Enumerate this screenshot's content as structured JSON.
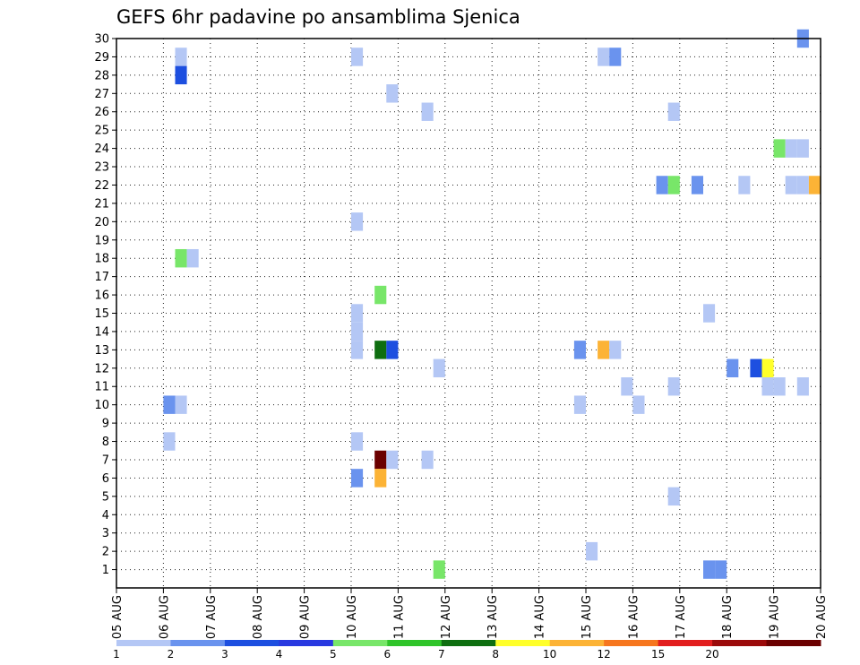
{
  "chart_data": {
    "type": "heatmap",
    "title": "GEFS 6hr padavine po ansamblima Sjenica",
    "xlabel": "",
    "ylabel": "",
    "x_tick_labels": [
      "05 AUG",
      "06 AUG",
      "07 AUG",
      "08 AUG",
      "09 AUG",
      "10 AUG",
      "11 AUG",
      "12 AUG",
      "13 AUG",
      "14 AUG",
      "15 AUG",
      "16 AUG",
      "17 AUG",
      "18 AUG",
      "19 AUG",
      "20 AUG"
    ],
    "y_ticks": [
      1,
      2,
      3,
      4,
      5,
      6,
      7,
      8,
      9,
      10,
      11,
      12,
      13,
      14,
      15,
      16,
      17,
      18,
      19,
      20,
      21,
      22,
      23,
      24,
      25,
      26,
      27,
      28,
      29,
      30
    ],
    "x_range_days": [
      0,
      15
    ],
    "y_range": [
      0,
      30
    ],
    "grid": true,
    "colorbar": {
      "labels": [
        "1",
        "2",
        "3",
        "4",
        "5",
        "6",
        "7",
        "8",
        "10",
        "12",
        "15",
        "20"
      ],
      "colors": [
        "#b4c7f5",
        "#6a93ee",
        "#1d4fe0",
        "#2839e0",
        "#78e669",
        "#2fc42a",
        "#0e6e10",
        "#ffff2a",
        "#fcb336",
        "#f6761e",
        "#e21e1e",
        "#9b0a0a",
        "#6b0000"
      ]
    },
    "cells": [
      {
        "day": 1.25,
        "member": 29,
        "color": "#b4c7f5"
      },
      {
        "day": 1.25,
        "member": 28,
        "color": "#1d4fe0"
      },
      {
        "day": 1.25,
        "member": 18,
        "color": "#78e669"
      },
      {
        "day": 1.5,
        "member": 18,
        "color": "#b4c7f5"
      },
      {
        "day": 1.0,
        "member": 10,
        "color": "#6a93ee"
      },
      {
        "day": 1.25,
        "member": 10,
        "color": "#b4c7f5"
      },
      {
        "day": 1.0,
        "member": 8,
        "color": "#b4c7f5"
      },
      {
        "day": 5.0,
        "member": 29,
        "color": "#b4c7f5"
      },
      {
        "day": 5.0,
        "member": 20,
        "color": "#b4c7f5"
      },
      {
        "day": 5.0,
        "member": 15,
        "color": "#b4c7f5"
      },
      {
        "day": 5.0,
        "member": 14,
        "color": "#b4c7f5"
      },
      {
        "day": 5.0,
        "member": 13,
        "color": "#b4c7f5"
      },
      {
        "day": 5.0,
        "member": 8,
        "color": "#b4c7f5"
      },
      {
        "day": 5.0,
        "member": 6,
        "color": "#6a93ee"
      },
      {
        "day": 5.75,
        "member": 27,
        "color": "#b4c7f5"
      },
      {
        "day": 5.5,
        "member": 16,
        "color": "#78e669"
      },
      {
        "day": 5.5,
        "member": 13,
        "color": "#0e6e10"
      },
      {
        "day": 5.75,
        "member": 13,
        "color": "#1d4fe0"
      },
      {
        "day": 5.5,
        "member": 7,
        "color": "#6b0000"
      },
      {
        "day": 5.75,
        "member": 7,
        "color": "#b4c7f5"
      },
      {
        "day": 5.5,
        "member": 6,
        "color": "#fcb336"
      },
      {
        "day": 6.5,
        "member": 26,
        "color": "#b4c7f5"
      },
      {
        "day": 6.5,
        "member": 7,
        "color": "#b4c7f5"
      },
      {
        "day": 6.75,
        "member": 12,
        "color": "#b4c7f5"
      },
      {
        "day": 6.75,
        "member": 1,
        "color": "#78e669"
      },
      {
        "day": 10.25,
        "member": 29,
        "color": "#b4c7f5"
      },
      {
        "day": 10.5,
        "member": 29,
        "color": "#6a93ee"
      },
      {
        "day": 9.75,
        "member": 13,
        "color": "#6a93ee"
      },
      {
        "day": 10.25,
        "member": 13,
        "color": "#fcb336"
      },
      {
        "day": 10.5,
        "member": 13,
        "color": "#b4c7f5"
      },
      {
        "day": 9.75,
        "member": 10,
        "color": "#b4c7f5"
      },
      {
        "day": 10.0,
        "member": 2,
        "color": "#b4c7f5"
      },
      {
        "day": 10.75,
        "member": 11,
        "color": "#b4c7f5"
      },
      {
        "day": 11.0,
        "member": 10,
        "color": "#b4c7f5"
      },
      {
        "day": 11.5,
        "member": 22,
        "color": "#6a93ee"
      },
      {
        "day": 11.75,
        "member": 26,
        "color": "#b4c7f5"
      },
      {
        "day": 11.75,
        "member": 22,
        "color": "#78e669"
      },
      {
        "day": 11.75,
        "member": 11,
        "color": "#b4c7f5"
      },
      {
        "day": 11.75,
        "member": 5,
        "color": "#b4c7f5"
      },
      {
        "day": 12.25,
        "member": 22,
        "color": "#6a93ee"
      },
      {
        "day": 12.5,
        "member": 15,
        "color": "#b4c7f5"
      },
      {
        "day": 12.5,
        "member": 1,
        "color": "#6a93ee"
      },
      {
        "day": 12.75,
        "member": 1,
        "color": "#6a93ee"
      },
      {
        "day": 13.25,
        "member": 22,
        "color": "#b4c7f5"
      },
      {
        "day": 13.0,
        "member": 12,
        "color": "#6a93ee"
      },
      {
        "day": 13.5,
        "member": 12,
        "color": "#1d4fe0"
      },
      {
        "day": 13.75,
        "member": 12,
        "color": "#ffff2a"
      },
      {
        "day": 13.75,
        "member": 11,
        "color": "#b4c7f5"
      },
      {
        "day": 14.0,
        "member": 11,
        "color": "#b4c7f5"
      },
      {
        "day": 14.0,
        "member": 24,
        "color": "#78e669"
      },
      {
        "day": 14.25,
        "member": 24,
        "color": "#b4c7f5"
      },
      {
        "day": 14.5,
        "member": 24,
        "color": "#b4c7f5"
      },
      {
        "day": 14.25,
        "member": 22,
        "color": "#b4c7f5"
      },
      {
        "day": 14.5,
        "member": 22,
        "color": "#b4c7f5"
      },
      {
        "day": 14.75,
        "member": 22,
        "color": "#fcb336"
      },
      {
        "day": 14.5,
        "member": 11,
        "color": "#b4c7f5"
      },
      {
        "day": 14.5,
        "member": 30,
        "color": "#6a93ee"
      }
    ]
  }
}
